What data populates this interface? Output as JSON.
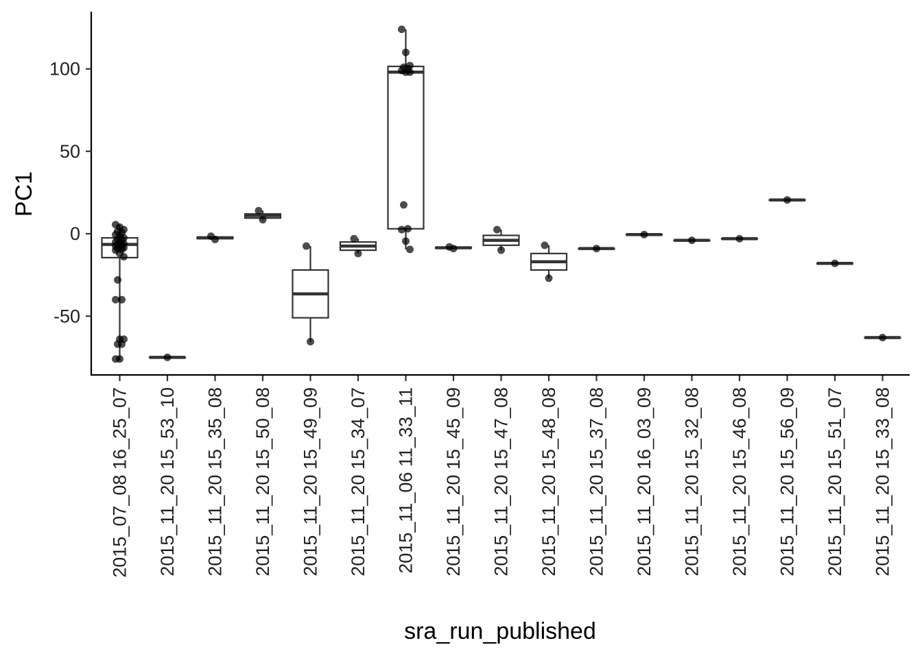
{
  "chart_data": {
    "type": "boxplot",
    "xlabel": "sra_run_published",
    "ylabel": "PC1",
    "ylim": [
      -85,
      135
    ],
    "yticks": [
      -50,
      0,
      50,
      100
    ],
    "grid": false,
    "legend": "none",
    "categories": [
      "2015_07_08 16_25_07",
      "2015_11_20 15_53_10",
      "2015_11_20 15_35_08",
      "2015_11_20 15_50_08",
      "2015_11_20 15_49_09",
      "2015_11_20 15_34_07",
      "2015_11_06 11_33_11",
      "2015_11_20 15_45_09",
      "2015_11_20 15_47_08",
      "2015_11_20 15_48_08",
      "2015_11_20 15_37_08",
      "2015_11_20 16_03_09",
      "2015_11_20 15_32_08",
      "2015_11_20 15_46_08",
      "2015_11_20 15_56_09",
      "2015_11_20 15_51_07",
      "2015_11_20 15_33_08"
    ],
    "boxes": [
      {
        "lower": -77,
        "q1": -14.5,
        "median": -6.5,
        "q3": -2.5,
        "upper": 5.5,
        "points": [
          5.5,
          4,
          2.5,
          1.5,
          0.5,
          -0.5,
          -1.5,
          -2.5,
          -3.5,
          -4,
          -5,
          -5.5,
          -6,
          -6.5,
          -7,
          -7.5,
          -8,
          -8.5,
          -9,
          -9.5,
          -10,
          -12,
          -14,
          -28,
          -40,
          -40,
          -64,
          -64,
          -67,
          -67,
          -76,
          -76
        ]
      },
      {
        "lower": -75,
        "q1": -75,
        "median": -75,
        "q3": -75,
        "upper": -75,
        "points": [
          -75
        ]
      },
      {
        "lower": -3.5,
        "q1": -3,
        "median": -2.5,
        "q3": -2,
        "upper": -1.5,
        "points": [
          -1.5,
          -3.5
        ]
      },
      {
        "lower": 8.5,
        "q1": 9.5,
        "median": 11,
        "q3": 12,
        "upper": 14,
        "points": [
          14,
          8.5
        ]
      },
      {
        "lower": -65.5,
        "q1": -51,
        "median": -36.5,
        "q3": -22,
        "upper": -7.5,
        "points": [
          -7.5,
          -65.5
        ]
      },
      {
        "lower": -12,
        "q1": -10,
        "median": -7.5,
        "q3": -5,
        "upper": -3,
        "points": [
          -3,
          -12
        ]
      },
      {
        "lower": -9.5,
        "q1": 3,
        "median": 98,
        "q3": 101.5,
        "upper": 124,
        "points": [
          124,
          110,
          102,
          101,
          100,
          99,
          98,
          98,
          17.5,
          3,
          2.5,
          -4.5,
          -9.5
        ]
      },
      {
        "lower": -9,
        "q1": -8.75,
        "median": -8.5,
        "q3": -8.25,
        "upper": -8,
        "points": [
          -8,
          -9
        ]
      },
      {
        "lower": -10,
        "q1": -7,
        "median": -4,
        "q3": -1,
        "upper": 2.5,
        "points": [
          2.5,
          -10
        ]
      },
      {
        "lower": -27,
        "q1": -22,
        "median": -17,
        "q3": -12,
        "upper": -7,
        "points": [
          -7,
          -27
        ]
      },
      {
        "lower": -9,
        "q1": -9,
        "median": -9,
        "q3": -9,
        "upper": -9,
        "points": [
          -9
        ]
      },
      {
        "lower": -0.5,
        "q1": -0.5,
        "median": -0.5,
        "q3": -0.5,
        "upper": -0.5,
        "points": [
          -0.5
        ]
      },
      {
        "lower": -4,
        "q1": -4,
        "median": -4,
        "q3": -4,
        "upper": -4,
        "points": [
          -4
        ]
      },
      {
        "lower": -3,
        "q1": -3,
        "median": -3,
        "q3": -3,
        "upper": -3,
        "points": [
          -3
        ]
      },
      {
        "lower": 20.5,
        "q1": 20.5,
        "median": 20.5,
        "q3": 20.5,
        "upper": 20.5,
        "points": [
          20.5
        ]
      },
      {
        "lower": -18,
        "q1": -18,
        "median": -18,
        "q3": -18,
        "upper": -18,
        "points": [
          -18
        ]
      },
      {
        "lower": -63,
        "q1": -63,
        "median": -63,
        "q3": -63,
        "upper": -63,
        "points": [
          -63
        ]
      }
    ]
  }
}
